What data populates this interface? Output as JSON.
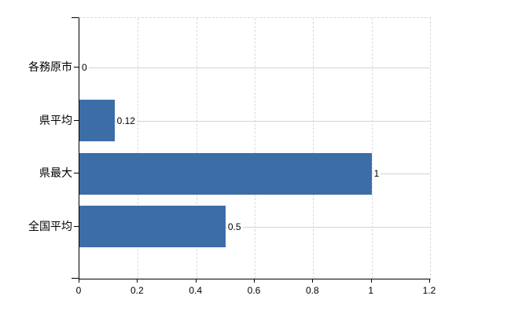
{
  "chart_data": {
    "type": "bar",
    "orientation": "horizontal",
    "title": "",
    "xlabel": "",
    "ylabel": "",
    "categories": [
      "各務原市",
      "県平均",
      "県最大",
      "全国平均"
    ],
    "values": [
      0,
      0.12,
      1,
      0.5
    ],
    "value_labels": [
      "0",
      "0.12",
      "1",
      "0.5"
    ],
    "xlim": [
      0,
      1.2
    ],
    "x_ticks": [
      0,
      0.2,
      0.4,
      0.6,
      0.8,
      1,
      1.2
    ],
    "x_tick_labels": [
      "0",
      "0.2",
      "0.4",
      "0.6",
      "0.8",
      "1",
      "1.2"
    ],
    "grid": "on",
    "legend": "none",
    "colors": {
      "bar": "#3d6da7",
      "grid_horizontal": "#d3d6d0",
      "grid_vertical": "#d9d9d9",
      "axis": "#000000",
      "text": "#000000"
    }
  }
}
